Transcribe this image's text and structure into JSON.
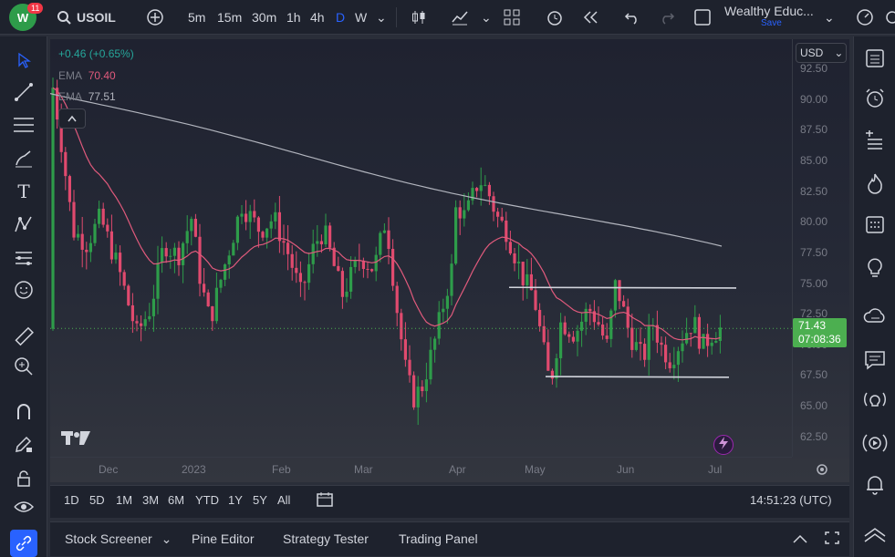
{
  "toolbar": {
    "notif_count": "11",
    "symbol": "USOIL",
    "intervals": [
      "5m",
      "15m",
      "30m",
      "1h",
      "4h",
      "D",
      "W"
    ],
    "active_interval": "D",
    "layout_name": "Wealthy Educ...",
    "save_label": "Save"
  },
  "legend": {
    "change": "+0.46 (+0.65%)",
    "ema1_label": "EMA",
    "ema1_value": "70.40",
    "ema2_label": "EMA",
    "ema2_value": "77.51"
  },
  "price_axis": {
    "currency": "USD",
    "ticks": [
      "92.50",
      "90.00",
      "87.50",
      "85.00",
      "82.50",
      "80.00",
      "77.50",
      "75.00",
      "72.50",
      "70.00",
      "67.50",
      "65.00",
      "62.50"
    ],
    "last_price": "71.43",
    "countdown": "07:08:36"
  },
  "time_axis": {
    "labels": [
      "Dec",
      "2023",
      "Feb",
      "Mar",
      "Apr",
      "May",
      "Jun",
      "Jul"
    ]
  },
  "ranges": {
    "items": [
      "1D",
      "5D",
      "1M",
      "3M",
      "6M",
      "YTD",
      "1Y",
      "5Y",
      "All"
    ],
    "clock": "14:51:23 (UTC)"
  },
  "bottom_tabs": {
    "items": [
      "Stock Screener",
      "Pine Editor",
      "Strategy Tester",
      "Trading Panel"
    ]
  },
  "colors": {
    "up": "#26a69a",
    "up_bar": "#2e9c4a",
    "down": "#e04a6e",
    "ema_fast": "#e05a7c",
    "ema_slow": "#b2b5be",
    "accent": "#2962ff",
    "price_tag": "#4caf50"
  },
  "chart_data": {
    "type": "candlestick",
    "symbol": "USOIL",
    "ylim": [
      61.5,
      93.8
    ],
    "x_labels": [
      "Dec",
      "2023",
      "Feb",
      "Mar",
      "Apr",
      "May",
      "Jun",
      "Jul"
    ],
    "last_price": 71.43,
    "series": [
      {
        "name": "EMA",
        "value": 70.4
      },
      {
        "name": "EMA",
        "value": 77.51
      }
    ],
    "channel": {
      "top": 74.6,
      "bottom": 67.7
    }
  }
}
